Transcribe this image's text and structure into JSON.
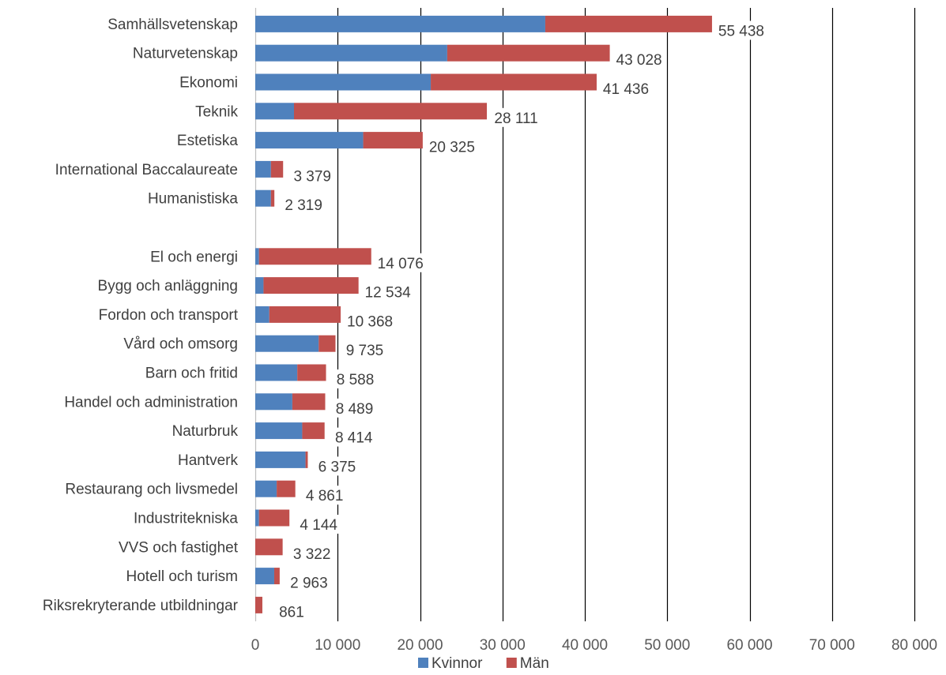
{
  "chart_data": {
    "type": "bar",
    "orientation": "horizontal",
    "stacked": true,
    "categories": [
      "Samhällsvetenskap",
      "Naturvetenskap",
      "Ekonomi",
      "Teknik",
      "Estetiska",
      "International Baccalaureate",
      "Humanistiska",
      "",
      "El och energi",
      "Bygg och anläggning",
      "Fordon och transport",
      "Vård och omsorg",
      "Barn och fritid",
      "Handel och administration",
      "Naturbruk",
      "Hantverk",
      "Restaurang och livsmedel",
      "Industritekniska",
      "VVS och fastighet",
      "Hotell och turism",
      "Riksrekryterande utbildningar"
    ],
    "series": [
      {
        "name": "Kvinnor",
        "color": "#4f81bd",
        "values": [
          35200,
          23300,
          21300,
          4700,
          13100,
          1900,
          1900,
          null,
          450,
          1000,
          1700,
          7700,
          5100,
          4500,
          5700,
          6100,
          2600,
          450,
          0,
          2300,
          0
        ]
      },
      {
        "name": "Män",
        "color": "#c0504d",
        "values": [
          20238,
          19728,
          20136,
          23411,
          7225,
          1479,
          419,
          null,
          13626,
          11534,
          8668,
          2035,
          3488,
          3989,
          2714,
          275,
          2261,
          3694,
          3322,
          663,
          861
        ]
      }
    ],
    "data_labels": [
      "55 438",
      "43 028",
      "41 436",
      "28 111",
      "20 325",
      "3 379",
      "2 319",
      "",
      "14 076",
      "12 534",
      "10 368",
      "9 735",
      "8 588",
      "8 489",
      "8 414",
      "6 375",
      "4 861",
      "4 144",
      "3 322",
      "2 963",
      "861"
    ],
    "xlim": [
      0,
      80000
    ],
    "x_ticks": [
      0,
      10000,
      20000,
      30000,
      40000,
      50000,
      60000,
      70000,
      80000
    ],
    "x_tick_labels": [
      "0",
      "10 000",
      "20 000",
      "30 000",
      "40 000",
      "50 000",
      "60 000",
      "70 000",
      "80 000"
    ],
    "grid": true,
    "legend": {
      "position": "bottom",
      "entries": [
        "Kvinnor",
        "Män"
      ]
    },
    "title": "",
    "xlabel": "",
    "ylabel": ""
  }
}
